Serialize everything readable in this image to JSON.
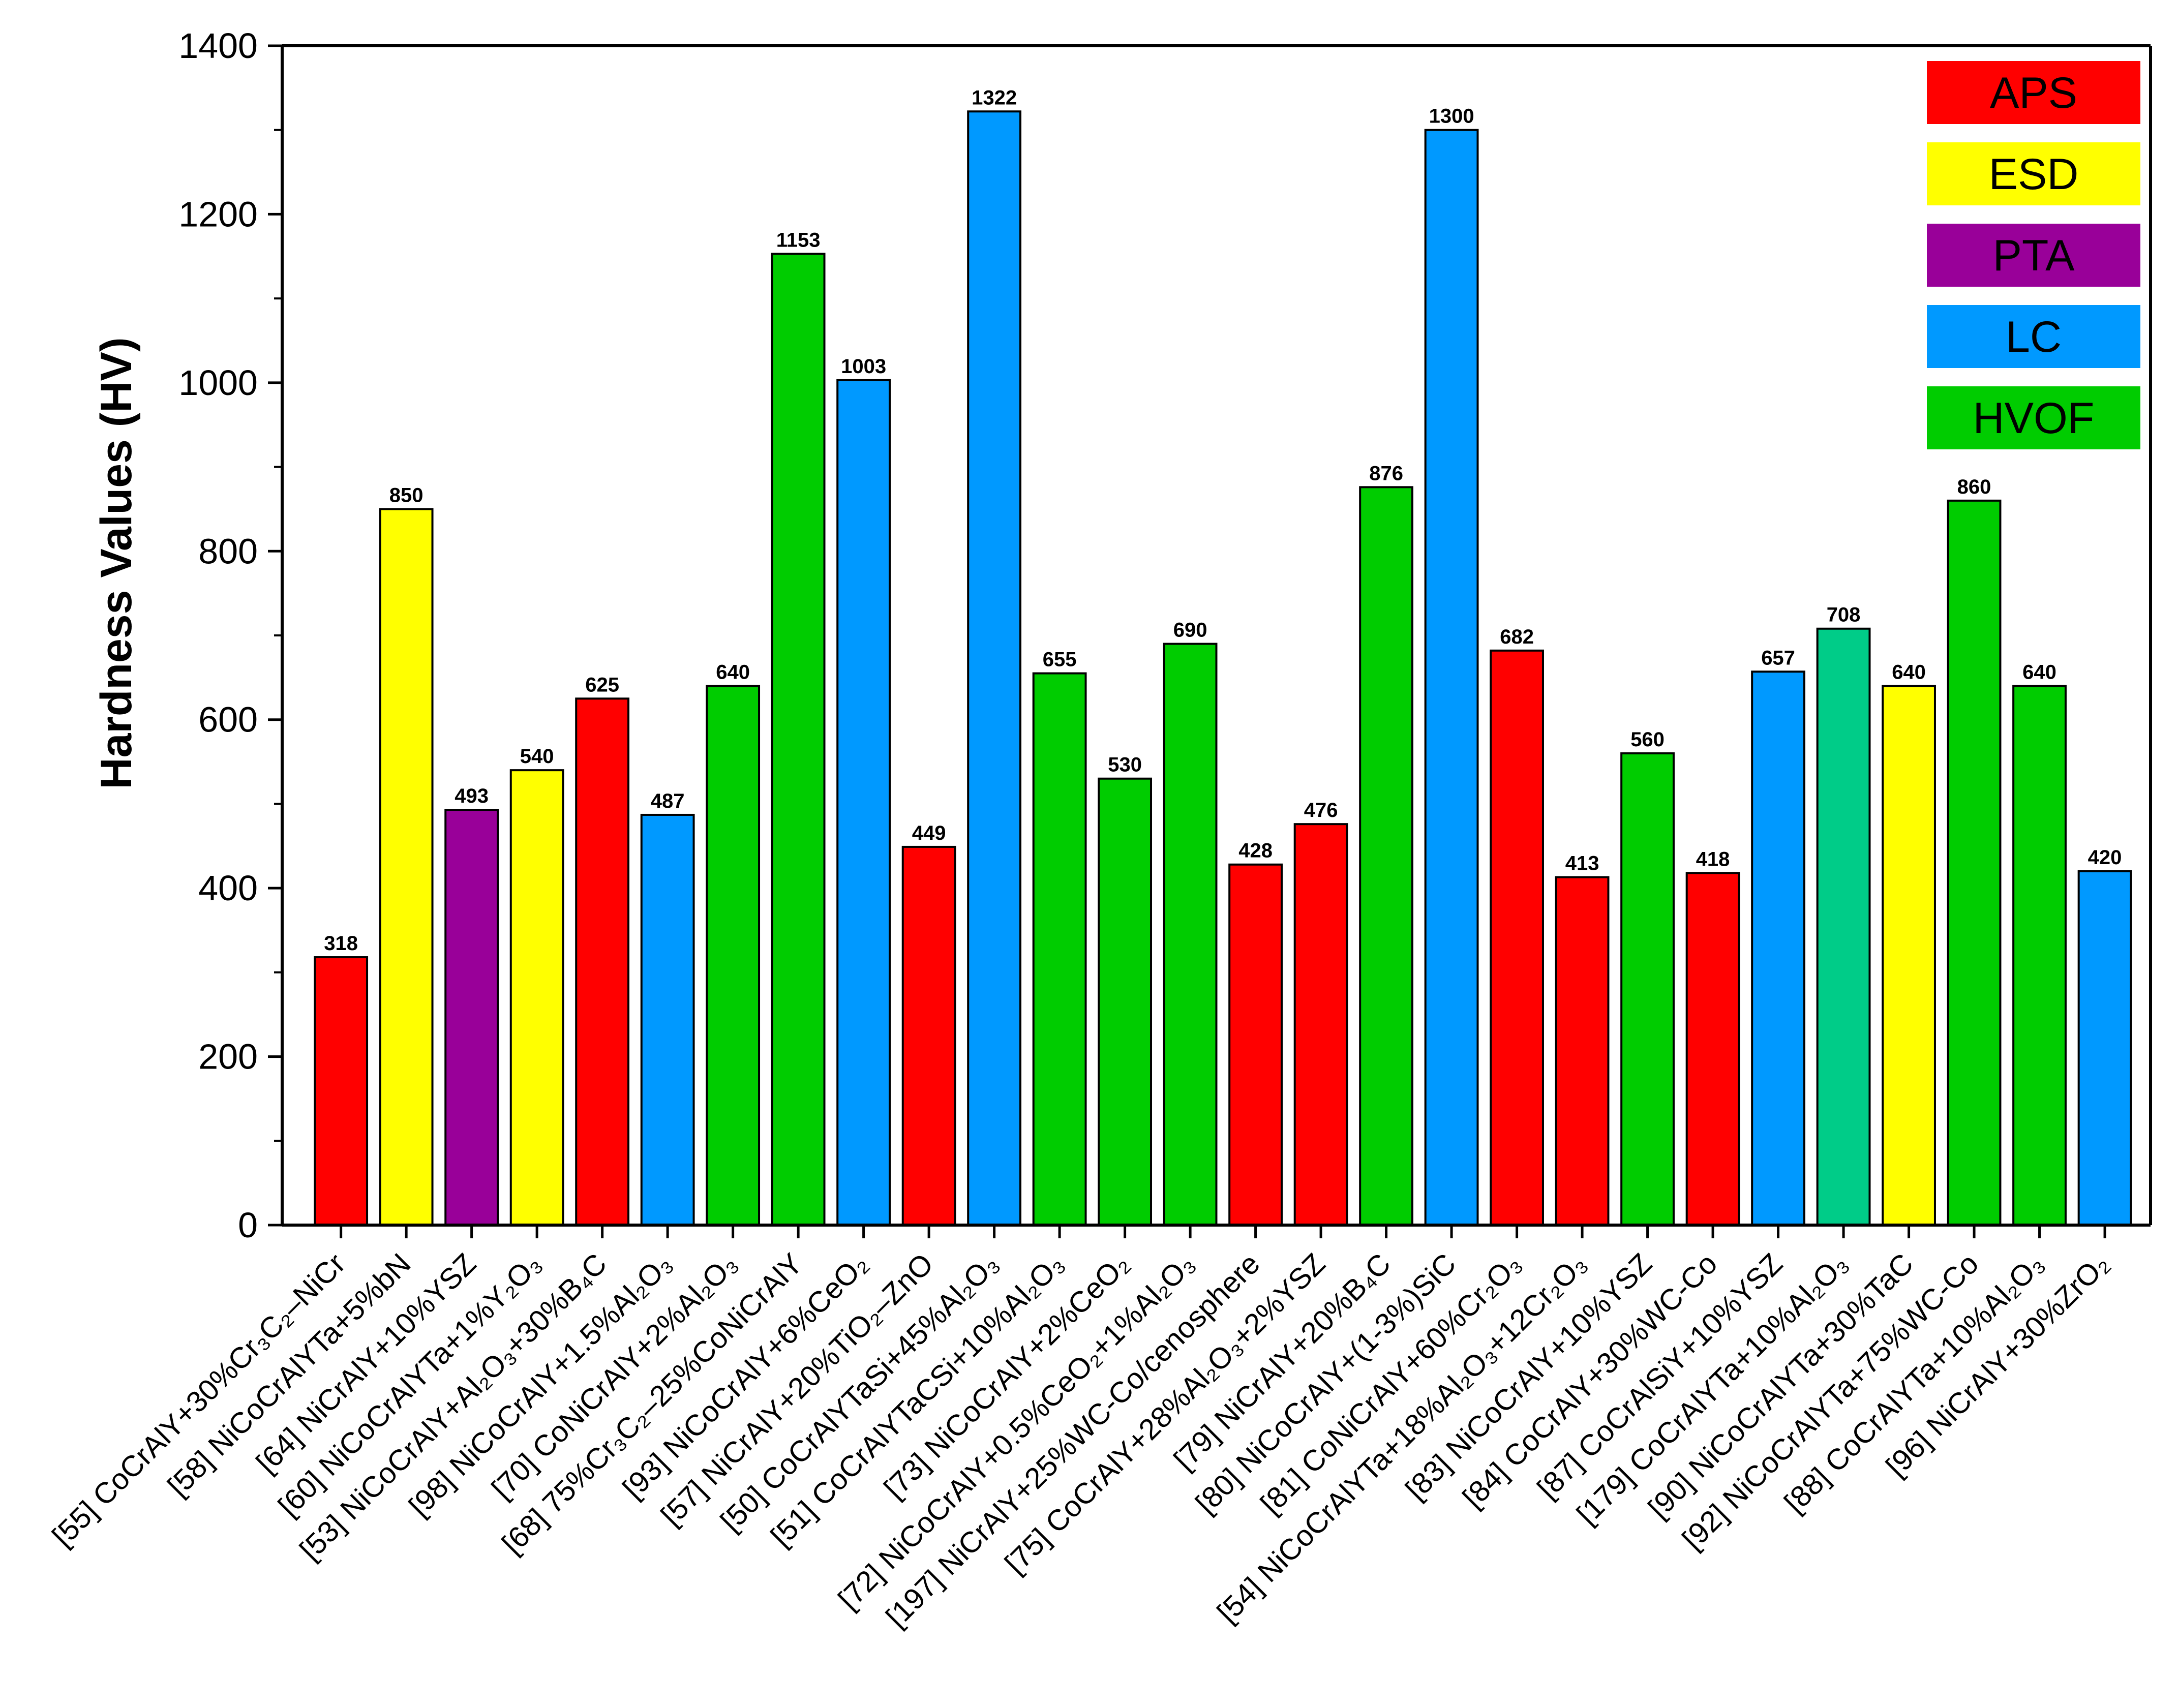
{
  "chart_data": {
    "type": "bar",
    "ylabel": "Hardness Values (HV)",
    "xlabel": "",
    "title": "",
    "ylim": [
      0,
      1400
    ],
    "yticks": [
      0,
      200,
      400,
      600,
      800,
      1000,
      1200,
      1400
    ],
    "legend": [
      {
        "label": "APS",
        "color": "#ff0000"
      },
      {
        "label": "ESD",
        "color": "#ffff00"
      },
      {
        "label": "PTA",
        "color": "#990099"
      },
      {
        "label": "LC",
        "color": "#0099ff"
      },
      {
        "label": "HVOF",
        "color": "#00cc00"
      }
    ],
    "bars": [
      {
        "label": "[55] CoCrAlY+30%Cr₃C₂–NiCr",
        "value": 318,
        "process": "APS",
        "color": "#ff0000"
      },
      {
        "label": "[58] NiCoCrAlYTa+5%bN",
        "value": 850,
        "process": "ESD",
        "color": "#ffff00"
      },
      {
        "label": "[64] NiCrAlY+10%YSZ",
        "value": 493,
        "process": "PTA",
        "color": "#990099"
      },
      {
        "label": "[60] NiCoCrAlYTa+1%Y₂O₃",
        "value": 540,
        "process": "ESD",
        "color": "#ffff00"
      },
      {
        "label": "[53] NiCoCrAlY+Al₂O₃+30%B₄C",
        "value": 625,
        "process": "APS",
        "color": "#ff0000"
      },
      {
        "label": "[98] NiCoCrAlY+1.5%Al₂O₃",
        "value": 487,
        "process": "LC",
        "color": "#0099ff"
      },
      {
        "label": "[70] CoNiCrAlY+2%Al₂O₃",
        "value": 640,
        "process": "HVOF",
        "color": "#00cc00"
      },
      {
        "label": "[68] 75%Cr₃C₂–25%CoNiCrAlY",
        "value": 1153,
        "process": "HVOF",
        "color": "#00cc00"
      },
      {
        "label": "[93] NiCoCrAlY+6%CeO₂",
        "value": 1003,
        "process": "LC",
        "color": "#0099ff"
      },
      {
        "label": "[57] NiCrAlY+20%TiO₂–ZnO",
        "value": 449,
        "process": "APS",
        "color": "#ff0000"
      },
      {
        "label": "[50] CoCrAlYTaSi+45%Al₂O₃",
        "value": 1322,
        "process": "LC",
        "color": "#0099ff"
      },
      {
        "label": "[51] CoCrAlYTaCSi+10%Al₂O₃",
        "value": 655,
        "process": "HVOF",
        "color": "#00cc00"
      },
      {
        "label": "[73] NiCoCrAlY+2%CeO₂",
        "value": 530,
        "process": "HVOF",
        "color": "#00cc00"
      },
      {
        "label": "[72] NiCoCrAlY+0.5%CeO₂+1%Al₂O₃",
        "value": 690,
        "process": "HVOF",
        "color": "#00cc00"
      },
      {
        "label": "[197] NiCrAlY+25%WC-Co/cenosphere",
        "value": 428,
        "process": "APS",
        "color": "#ff0000"
      },
      {
        "label": "[75] CoCrAlY+28%Al₂O₃+2%YSZ",
        "value": 476,
        "process": "APS",
        "color": "#ff0000"
      },
      {
        "label": "[79] NiCrAlY+20%B₄C",
        "value": 876,
        "process": "HVOF",
        "color": "#00cc00"
      },
      {
        "label": "[80] NiCoCrAlY+(1-3%)SiC",
        "value": 1300,
        "process": "LC",
        "color": "#0099ff"
      },
      {
        "label": "[81] CoNiCrAlY+60%Cr₂O₃",
        "value": 682,
        "process": "APS",
        "color": "#ff0000"
      },
      {
        "label": "[54] NiCoCrAlYTa+18%Al₂O₃+12Cr₂O₃",
        "value": 413,
        "process": "APS",
        "color": "#ff0000"
      },
      {
        "label": "[83] NiCoCrAlY+10%YSZ",
        "value": 560,
        "process": "HVOF",
        "color": "#00cc00"
      },
      {
        "label": "[84] CoCrAlY+30%WC-Co",
        "value": 418,
        "process": "APS",
        "color": "#ff0000"
      },
      {
        "label": "[87] CoCrAlSiY+10%YSZ",
        "value": 657,
        "process": "LC",
        "color": "#0099ff"
      },
      {
        "label": "[179] CoCrAlYTa+10%Al₂O₃",
        "value": 708,
        "process": "",
        "color": "#00cc88"
      },
      {
        "label": "[90] NiCoCrAlYTa+30%TaC",
        "value": 640,
        "process": "ESD",
        "color": "#ffff00"
      },
      {
        "label": "[92] NiCoCrAlYTa+75%WC-Co",
        "value": 860,
        "process": "HVOF",
        "color": "#00cc00"
      },
      {
        "label": "[88] CoCrAlYTa+10%Al₂O₃",
        "value": 640,
        "process": "HVOF",
        "color": "#00cc00"
      },
      {
        "label": "[96] NiCrAlY+30%ZrO₂",
        "value": 420,
        "process": "LC",
        "color": "#0099ff"
      }
    ]
  }
}
